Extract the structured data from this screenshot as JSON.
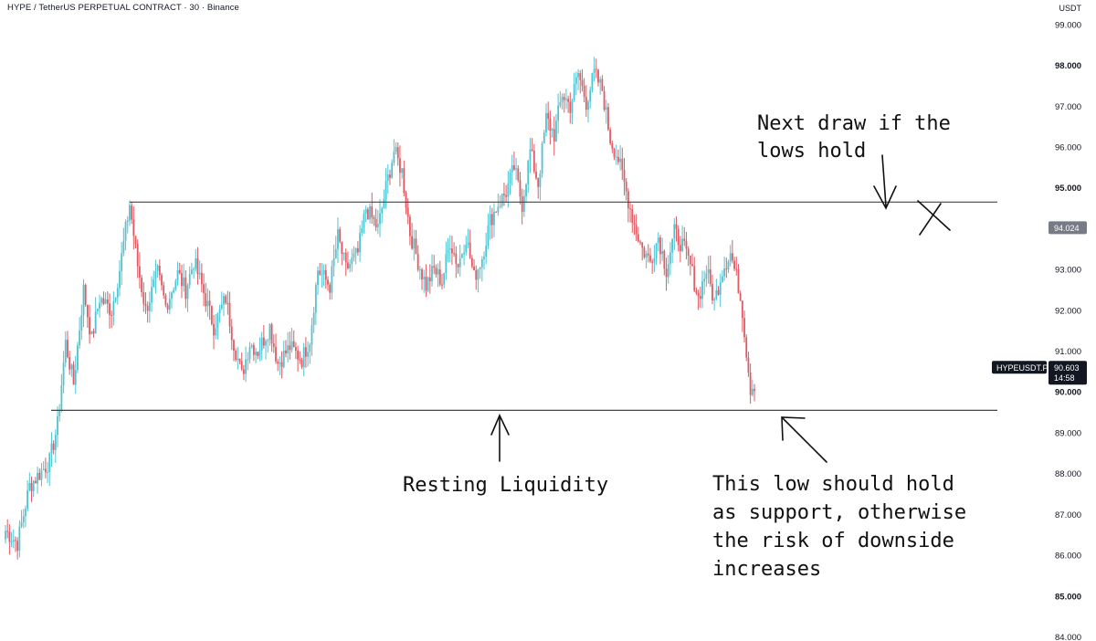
{
  "header": {
    "title": "HYPE / TetherUS PERPETUAL CONTRACT · 30 · Binance",
    "currency": "USDT"
  },
  "colors": {
    "up": "#4fc3d1",
    "down": "#e05a63",
    "line": "#444444",
    "text": "#131722"
  },
  "chart_data": {
    "type": "candlestick",
    "symbol": "HYPEUSDT.P",
    "ylim": [
      83.9,
      99.6
    ],
    "y_ticks": [
      "99.000",
      "98.000",
      "97.000",
      "96.000",
      "95.000",
      "93.000",
      "92.000",
      "91.000",
      "90.000",
      "89.000",
      "88.000",
      "87.000",
      "86.000",
      "85.000",
      "84.000"
    ],
    "bold_ticks": [
      "98.000",
      "95.000",
      "90.000",
      "85.000"
    ],
    "levels": {
      "resistance": 94.65,
      "support": 89.55
    },
    "price_tags": [
      {
        "value": 94.024,
        "label": "94.024"
      },
      {
        "value": 90.603,
        "label": "90.603",
        "countdown": "14:58",
        "symbol": "HYPEUSDT.P"
      }
    ],
    "anchors": [
      [
        0,
        86.6
      ],
      [
        6,
        86.3
      ],
      [
        12,
        87.7
      ],
      [
        22,
        88.3
      ],
      [
        26,
        89.2
      ],
      [
        30,
        91.2
      ],
      [
        34,
        90.2
      ],
      [
        39,
        92.5
      ],
      [
        43,
        91.3
      ],
      [
        47,
        92.3
      ],
      [
        53,
        92.0
      ],
      [
        57,
        93.0
      ],
      [
        62,
        94.6
      ],
      [
        66,
        93.1
      ],
      [
        70,
        92.0
      ],
      [
        76,
        92.9
      ],
      [
        80,
        92.1
      ],
      [
        86,
        92.9
      ],
      [
        90,
        92.5
      ],
      [
        94,
        93.2
      ],
      [
        98,
        92.6
      ],
      [
        104,
        91.6
      ],
      [
        110,
        92.3
      ],
      [
        114,
        91.2
      ],
      [
        118,
        90.4
      ],
      [
        122,
        91.2
      ],
      [
        126,
        91.0
      ],
      [
        132,
        91.6
      ],
      [
        136,
        90.7
      ],
      [
        142,
        91.1
      ],
      [
        148,
        90.8
      ],
      [
        152,
        91.3
      ],
      [
        156,
        93.0
      ],
      [
        162,
        92.6
      ],
      [
        166,
        93.8
      ],
      [
        170,
        93.0
      ],
      [
        176,
        93.4
      ],
      [
        180,
        94.5
      ],
      [
        186,
        94.0
      ],
      [
        190,
        95.0
      ],
      [
        194,
        95.9
      ],
      [
        198,
        95.4
      ],
      [
        202,
        93.9
      ],
      [
        206,
        93.2
      ],
      [
        210,
        92.6
      ],
      [
        214,
        93.0
      ],
      [
        218,
        92.7
      ],
      [
        222,
        93.7
      ],
      [
        226,
        93.1
      ],
      [
        230,
        93.8
      ],
      [
        234,
        92.8
      ],
      [
        238,
        93.3
      ],
      [
        242,
        94.2
      ],
      [
        246,
        94.6
      ],
      [
        250,
        94.9
      ],
      [
        254,
        95.5
      ],
      [
        258,
        94.6
      ],
      [
        262,
        95.9
      ],
      [
        266,
        95.1
      ],
      [
        270,
        96.7
      ],
      [
        274,
        96.3
      ],
      [
        278,
        97.3
      ],
      [
        282,
        97.0
      ],
      [
        286,
        97.8
      ],
      [
        290,
        97.1
      ],
      [
        294,
        97.8
      ],
      [
        298,
        97.4
      ],
      [
        302,
        96.2
      ],
      [
        306,
        95.7
      ],
      [
        310,
        94.9
      ],
      [
        314,
        94.1
      ],
      [
        318,
        93.5
      ],
      [
        322,
        93.2
      ],
      [
        326,
        93.8
      ],
      [
        330,
        93.0
      ],
      [
        334,
        93.9
      ],
      [
        338,
        93.6
      ],
      [
        342,
        93.1
      ],
      [
        346,
        92.3
      ],
      [
        350,
        93.0
      ],
      [
        354,
        92.2
      ],
      [
        358,
        93.0
      ],
      [
        362,
        93.4
      ],
      [
        366,
        92.6
      ],
      [
        368,
        92.0
      ],
      [
        370,
        91.0
      ],
      [
        372,
        90.1
      ],
      [
        374,
        90.2
      ]
    ]
  },
  "annotations": {
    "top_right": [
      "Next draw if the",
      "lows hold"
    ],
    "bottom_mid": [
      "Resting Liquidity"
    ],
    "bottom_right": [
      "This low should hold",
      "as support, otherwise",
      "the risk of downside",
      "increases"
    ]
  }
}
